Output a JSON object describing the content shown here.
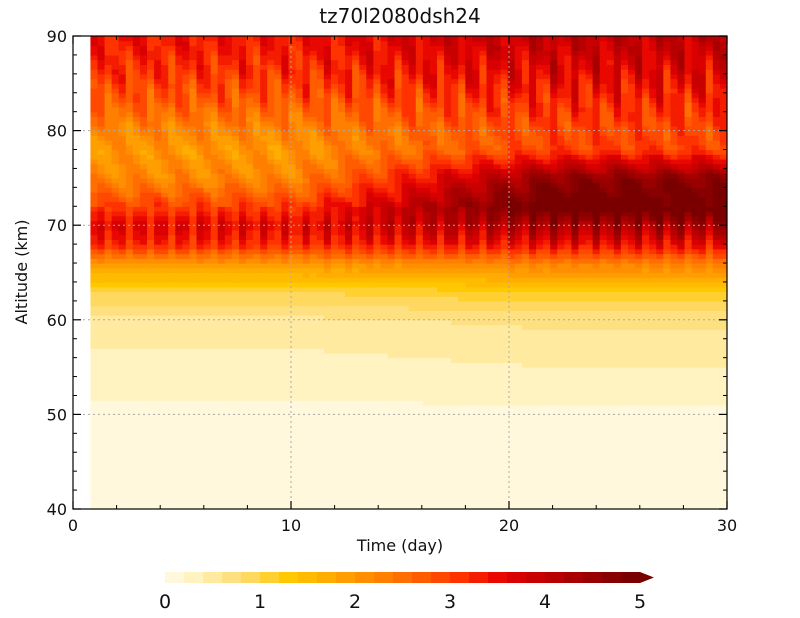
{
  "chart_data": {
    "type": "heatmap",
    "title": "tz70l2080dsh24",
    "xlabel": "Time (day)",
    "ylabel": "Altitude (km)",
    "xlim": [
      0,
      30
    ],
    "ylim": [
      40,
      90
    ],
    "x_ticks": [
      0,
      10,
      20,
      30
    ],
    "y_ticks": [
      40,
      50,
      60,
      70,
      80,
      90
    ],
    "grid": true,
    "data_start_day": 0.8,
    "colorbar": {
      "orientation": "horizontal",
      "placement": "bottom",
      "range": [
        0,
        5
      ],
      "levels": 25,
      "extend": "max",
      "tick_values": [
        0,
        1,
        2,
        3,
        4,
        5
      ],
      "tick_labels": [
        "0",
        "1",
        "2",
        "3",
        "4",
        "5"
      ],
      "colors": [
        "#fff8dc",
        "#fff3c2",
        "#ffeaa0",
        "#ffe080",
        "#ffd860",
        "#ffd030",
        "#ffc800",
        "#ffbb00",
        "#ffad00",
        "#ff9e00",
        "#ff8f00",
        "#ff7f00",
        "#ff6e00",
        "#ff5c00",
        "#ff4800",
        "#ff3300",
        "#f41d00",
        "#e80800",
        "#d80000",
        "#c80000",
        "#b80000",
        "#a80000",
        "#980000",
        "#880000",
        "#7a0000"
      ]
    },
    "altitude_profile_start": {
      "z": [
        40,
        50,
        55,
        60,
        63,
        66,
        68,
        70,
        72,
        75,
        78,
        80,
        83,
        86,
        90
      ],
      "value": [
        0.05,
        0.15,
        0.3,
        0.55,
        1.0,
        2.0,
        3.2,
        3.6,
        3.0,
        2.2,
        2.0,
        2.2,
        2.7,
        3.1,
        3.4
      ]
    },
    "altitude_profile_end": {
      "z": [
        40,
        50,
        55,
        60,
        63,
        66,
        68,
        70,
        72,
        75,
        78,
        80,
        83,
        86,
        90
      ],
      "value": [
        0.05,
        0.15,
        0.4,
        0.65,
        1.2,
        2.3,
        3.5,
        4.3,
        5.2,
        4.6,
        3.0,
        2.9,
        3.2,
        3.6,
        4.0
      ]
    }
  }
}
